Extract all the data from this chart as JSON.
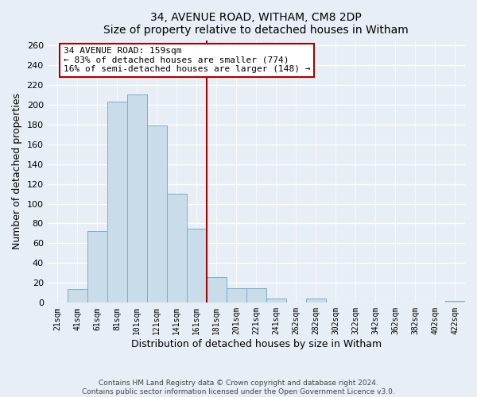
{
  "title": "34, AVENUE ROAD, WITHAM, CM8 2DP",
  "subtitle": "Size of property relative to detached houses in Witham",
  "xlabel": "Distribution of detached houses by size in Witham",
  "ylabel": "Number of detached properties",
  "bin_labels": [
    "21sqm",
    "41sqm",
    "61sqm",
    "81sqm",
    "101sqm",
    "121sqm",
    "141sqm",
    "161sqm",
    "181sqm",
    "201sqm",
    "221sqm",
    "241sqm",
    "262sqm",
    "282sqm",
    "302sqm",
    "322sqm",
    "342sqm",
    "362sqm",
    "382sqm",
    "402sqm",
    "422sqm"
  ],
  "bar_values": [
    0,
    14,
    72,
    203,
    210,
    179,
    110,
    75,
    26,
    15,
    15,
    4,
    0,
    4,
    0,
    0,
    0,
    0,
    0,
    0,
    2
  ],
  "bar_color": "#c9dcea",
  "bar_edge_color": "#7aaec8",
  "vline_color": "#aa0000",
  "annotation_title": "34 AVENUE ROAD: 159sqm",
  "annotation_line1": "← 83% of detached houses are smaller (774)",
  "annotation_line2": "16% of semi-detached houses are larger (148) →",
  "annotation_box_edge_color": "#aa0000",
  "ylim": [
    0,
    265
  ],
  "yticks": [
    0,
    20,
    40,
    60,
    80,
    100,
    120,
    140,
    160,
    180,
    200,
    220,
    240,
    260
  ],
  "background_color": "#e8eef5",
  "grid_color": "#ffffff",
  "footer_line1": "Contains HM Land Registry data © Crown copyright and database right 2024.",
  "footer_line2": "Contains public sector information licensed under the Open Government Licence v3.0."
}
